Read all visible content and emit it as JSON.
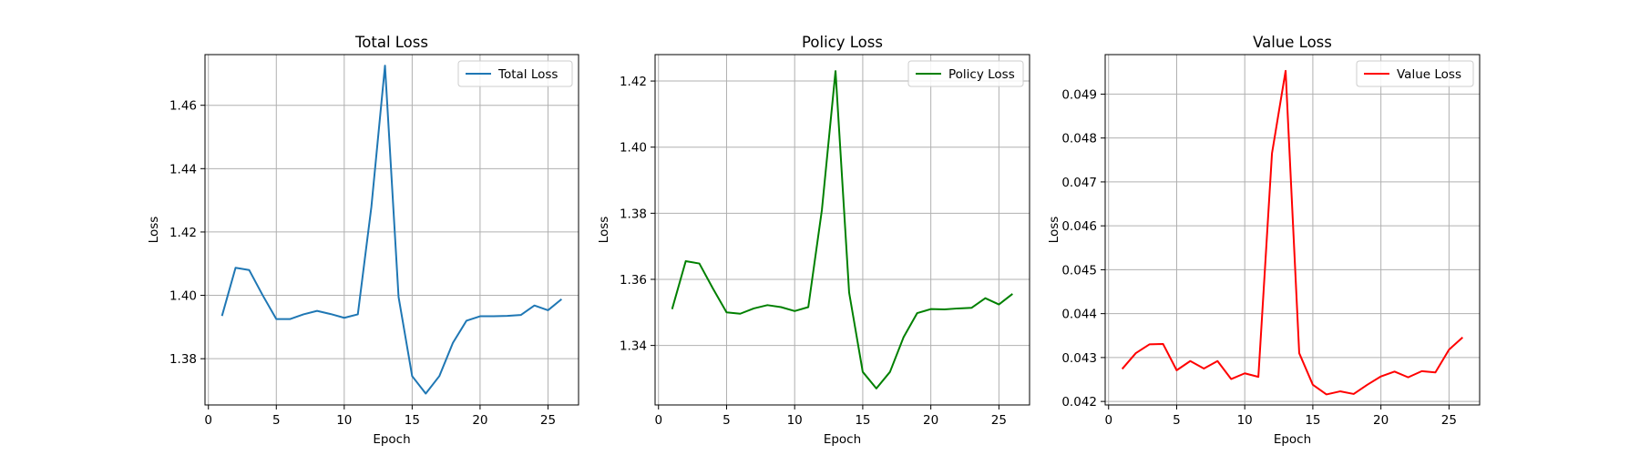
{
  "chart_data": [
    {
      "type": "line",
      "title": "Total Loss",
      "xlabel": "Epoch",
      "ylabel": "Loss",
      "xlim": [
        -0.25,
        27.25
      ],
      "ylim": [
        1.3654,
        1.476
      ],
      "xticks": [
        0,
        5,
        10,
        15,
        20,
        25
      ],
      "yticks": [
        1.38,
        1.4,
        1.42,
        1.44,
        1.46
      ],
      "ytick_labels": [
        "1.38",
        "1.40",
        "1.42",
        "1.44",
        "1.46"
      ],
      "grid": true,
      "legend_position": "upper right",
      "series": [
        {
          "name": "Total Loss",
          "color": "#1f77b4",
          "x": [
            1,
            2,
            3,
            4,
            5,
            6,
            7,
            8,
            9,
            10,
            11,
            12,
            13,
            14,
            15,
            16,
            17,
            18,
            19,
            20,
            21,
            22,
            23,
            24,
            25,
            26
          ],
          "y": [
            1.3935,
            1.4087,
            1.408,
            1.4,
            1.3925,
            1.3925,
            1.394,
            1.3951,
            1.3941,
            1.3929,
            1.394,
            1.428,
            1.4725,
            1.3995,
            1.3745,
            1.369,
            1.3745,
            1.385,
            1.392,
            1.3934,
            1.3934,
            1.3935,
            1.3938,
            1.3968,
            1.3953,
            1.3988
          ]
        }
      ]
    },
    {
      "type": "line",
      "title": "Policy Loss",
      "xlabel": "Epoch",
      "ylabel": "Loss",
      "xlim": [
        -0.25,
        27.25
      ],
      "ylim": [
        1.322,
        1.428
      ],
      "xticks": [
        0,
        5,
        10,
        15,
        20,
        25
      ],
      "yticks": [
        1.34,
        1.36,
        1.38,
        1.4,
        1.42
      ],
      "ytick_labels": [
        "1.34",
        "1.36",
        "1.38",
        "1.40",
        "1.42"
      ],
      "grid": true,
      "legend_position": "upper right",
      "series": [
        {
          "name": "Policy Loss",
          "color": "#008000",
          "x": [
            1,
            2,
            3,
            4,
            5,
            6,
            7,
            8,
            9,
            10,
            11,
            12,
            13,
            14,
            15,
            16,
            17,
            18,
            19,
            20,
            21,
            22,
            23,
            24,
            25,
            26
          ],
          "y": [
            1.351,
            1.3655,
            1.3648,
            1.3572,
            1.35,
            1.3496,
            1.3512,
            1.3522,
            1.3516,
            1.3504,
            1.3516,
            1.381,
            1.423,
            1.356,
            1.332,
            1.327,
            1.332,
            1.3425,
            1.3498,
            1.351,
            1.3509,
            1.3512,
            1.3514,
            1.3543,
            1.3524,
            1.3556
          ]
        }
      ]
    },
    {
      "type": "line",
      "title": "Value Loss",
      "xlabel": "Epoch",
      "ylabel": "Loss",
      "xlim": [
        -0.25,
        27.25
      ],
      "ylim": [
        0.04192,
        0.0499
      ],
      "xticks": [
        0,
        5,
        10,
        15,
        20,
        25
      ],
      "yticks": [
        0.042,
        0.043,
        0.044,
        0.045,
        0.046,
        0.047,
        0.048,
        0.049
      ],
      "ytick_labels": [
        "0.042",
        "0.043",
        "0.044",
        "0.045",
        "0.046",
        "0.047",
        "0.048",
        "0.049"
      ],
      "grid": true,
      "legend_position": "upper right",
      "series": [
        {
          "name": "Value Loss",
          "color": "#ff0000",
          "x": [
            1,
            2,
            3,
            4,
            5,
            6,
            7,
            8,
            9,
            10,
            11,
            12,
            13,
            14,
            15,
            16,
            17,
            18,
            19,
            20,
            21,
            22,
            23,
            24,
            25,
            26
          ],
          "y": [
            0.04274,
            0.0431,
            0.0433,
            0.04331,
            0.04271,
            0.04292,
            0.04275,
            0.04292,
            0.04251,
            0.04264,
            0.04256,
            0.04765,
            0.04953,
            0.0431,
            0.04238,
            0.04216,
            0.04223,
            0.04217,
            0.04238,
            0.04257,
            0.04268,
            0.04255,
            0.04269,
            0.04266,
            0.04318,
            0.04346
          ]
        }
      ]
    }
  ]
}
